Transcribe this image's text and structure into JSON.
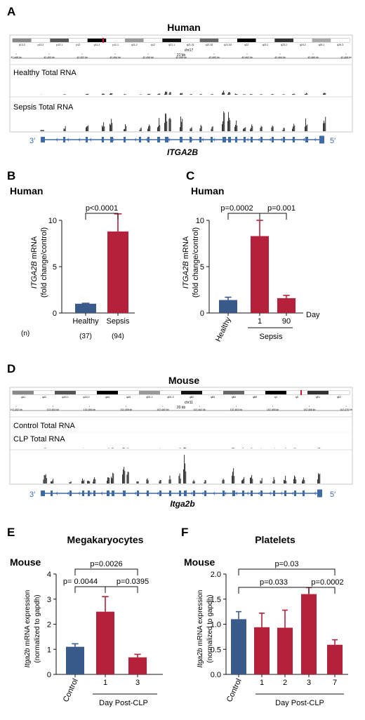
{
  "colors": {
    "blue": "#3a5a8c",
    "red": "#b5203a",
    "track": "#222222",
    "gene": "#3f6aa8",
    "chrom_red": "#d0142e"
  },
  "panels": {
    "A": {
      "letter": "A",
      "title": "Human",
      "chr": "chr17",
      "scale": "21 kb",
      "bands": [
        "p13.3",
        "p13.2",
        "p13.1",
        "p12",
        "p11.2",
        "p11.1",
        "q11.2",
        "q12",
        "q21.1",
        "q21.31",
        "q21.32",
        "q21.33",
        "q22",
        "q23.1",
        "q23.2",
        "q24.2",
        "q25.1",
        "q25.3"
      ],
      "kb": [
        "42,448 kb",
        "42,450 kb",
        "42,452 kb",
        "42,454 kb",
        "42,456 kb",
        "42,458 kb",
        "42,460 kb",
        "42,462 kb",
        "42,464 kb",
        "42,466 kb",
        "42,468 kb"
      ],
      "track1": "Healthy Total RNA",
      "track2": "Sepsis Total RNA",
      "strand_left": "3′",
      "strand_right": "5′",
      "gene": "ITGA2B"
    },
    "B": {
      "letter": "B",
      "title": "Human",
      "ylabel_gene": "ITGA2B",
      "ylabel_suffix": " mRNA",
      "ylabel2": "(fold change/control)",
      "n_label": "(n)"
    },
    "C": {
      "letter": "C",
      "title": "Human",
      "ylabel_gene": "ITGA2B",
      "ylabel_suffix": " mRNA",
      "ylabel2": "(fold change/control)",
      "day_label": "Day",
      "group_label": "Sepsis"
    },
    "D": {
      "letter": "D",
      "title": "Mouse",
      "chr": "chr11",
      "scale": "20 kb",
      "bands": [
        "qA1",
        "qA2",
        "qA3.1",
        "qA3.2",
        "qA4",
        "qA5",
        "qB1.1",
        "qB1.3",
        "qB2",
        "qB3",
        "qB4",
        "qB5",
        "qC",
        "qD",
        "qE1",
        "qE2"
      ],
      "kb": [
        "102,452 kb",
        "102,454 kb",
        "102,456 kb",
        "102,458 kb",
        "102,460 kb",
        "102,462 kb",
        "102,464 kb",
        "102,466 kb",
        "102,468 kb",
        "102,470 kb"
      ],
      "track1": "Control Total RNA",
      "track2": "CLP Total RNA",
      "strand_left": "3′",
      "strand_right": "5′",
      "gene": "Itga2b"
    },
    "E": {
      "letter": "E",
      "title": "Megakaryocytes",
      "species": "Mouse",
      "ylabel_gene": "Itga2b",
      "ylabel_suffix": " mRNA expression",
      "ylabel2": "(normalized to gapdh)",
      "group_label": "Day Post-CLP"
    },
    "F": {
      "letter": "F",
      "title": "Platelets",
      "species": "Mouse",
      "ylabel_gene": "Itga2b",
      "ylabel_suffix": " mRNA expression",
      "ylabel2": "(normalized to gapdh)",
      "group_label": "Day Post-CLP"
    }
  },
  "chart_data": [
    {
      "panel": "B",
      "type": "bar",
      "categories": [
        "Healthy",
        "Sepsis"
      ],
      "values": [
        1.0,
        8.8
      ],
      "errors": [
        0.05,
        1.9
      ],
      "n": [
        "(37)",
        "(94)"
      ],
      "ylim": [
        0,
        10
      ],
      "yticks": [
        0,
        5,
        10
      ],
      "annotations": [
        {
          "from": 0,
          "to": 1,
          "text": "p<0.0001"
        }
      ]
    },
    {
      "panel": "C",
      "type": "bar",
      "categories": [
        "Healthy",
        "1",
        "90"
      ],
      "values": [
        1.4,
        8.3,
        1.6
      ],
      "errors": [
        0.3,
        1.7,
        0.3
      ],
      "ylim": [
        0,
        10
      ],
      "yticks": [
        0,
        5,
        10
      ],
      "annotations": [
        {
          "from": 0,
          "to": 1,
          "text": "p=0.0002"
        },
        {
          "from": 1,
          "to": 2,
          "text": "p=0.001"
        }
      ]
    },
    {
      "panel": "E",
      "type": "bar",
      "categories": [
        "Control",
        "1",
        "3"
      ],
      "values": [
        1.1,
        2.5,
        0.68
      ],
      "errors": [
        0.12,
        0.6,
        0.12
      ],
      "ylim": [
        0,
        4
      ],
      "yticks": [
        0,
        1,
        2,
        3,
        4
      ],
      "annotations": [
        {
          "from": 0,
          "to": 2,
          "text": "p=0.0026"
        },
        {
          "from": 0,
          "to": 1,
          "text": "p= 0.0044"
        },
        {
          "from": 1,
          "to": 2,
          "text": "p=0.0395"
        }
      ]
    },
    {
      "panel": "F",
      "type": "bar",
      "categories": [
        "Control",
        "1",
        "2",
        "3",
        "7"
      ],
      "values": [
        1.1,
        0.94,
        0.93,
        1.6,
        0.59
      ],
      "errors": [
        0.15,
        0.28,
        0.35,
        0.13,
        0.1
      ],
      "ylim": [
        0,
        2.0
      ],
      "yticks": [
        "0.0",
        "0.5",
        "1.0",
        "1.5",
        "2.0"
      ],
      "annotations": [
        {
          "from": 0,
          "to": 4,
          "text": "p=0.03"
        },
        {
          "from": 0,
          "to": 3,
          "text": "p=0.033"
        },
        {
          "from": 3,
          "to": 4,
          "text": "p=0.0002"
        }
      ]
    }
  ]
}
